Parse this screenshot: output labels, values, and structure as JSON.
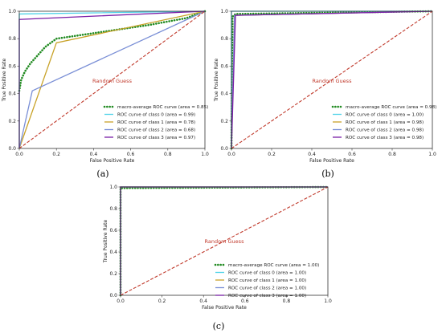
{
  "chart_data": [
    {
      "type": "line",
      "caption": "(a)",
      "xlabel": "False Positive Rate",
      "ylabel": "True Positive Rate",
      "xlim": [
        0,
        1
      ],
      "ylim": [
        0,
        1
      ],
      "xticks": [
        "0.0",
        "0.2",
        "0.4",
        "0.6",
        "0.8",
        "1.0"
      ],
      "yticks": [
        "0.0",
        "0.2",
        "0.4",
        "0.6",
        "0.8",
        "1.0"
      ],
      "grid": false,
      "legend_position": "lower-right",
      "diagonal_label": "Random Guess",
      "series": [
        {
          "name": "macro-average ROC curve (area = 0.85)",
          "color": "#228B22",
          "style": "dotted",
          "x": [
            0,
            0.01,
            0.03,
            0.06,
            0.1,
            0.14,
            0.2,
            0.3,
            0.5,
            0.7,
            0.9,
            1.0
          ],
          "y": [
            0.42,
            0.5,
            0.56,
            0.62,
            0.68,
            0.74,
            0.8,
            0.82,
            0.86,
            0.9,
            0.95,
            1.0
          ]
        },
        {
          "name": "ROC curve of class 0 (area = 0.99)",
          "color": "#4fd3e8",
          "style": "solid",
          "x": [
            0,
            0,
            1.0
          ],
          "y": [
            0,
            0.98,
            1.0
          ]
        },
        {
          "name": "ROC curve of class 1 (area = 0.78)",
          "color": "#c8a228",
          "style": "solid",
          "x": [
            0,
            0.2,
            1.0
          ],
          "y": [
            0,
            0.77,
            1.0
          ]
        },
        {
          "name": "ROC curve of class 2 (area = 0.68)",
          "color": "#7a8fd6",
          "style": "solid",
          "x": [
            0,
            0.07,
            1.0
          ],
          "y": [
            0,
            0.42,
            1.0
          ]
        },
        {
          "name": "ROC curve of class 3 (area = 0.97)",
          "color": "#7a1fa8",
          "style": "solid",
          "x": [
            0,
            0,
            1.0
          ],
          "y": [
            0,
            0.94,
            1.0
          ]
        }
      ]
    },
    {
      "type": "line",
      "caption": "(b)",
      "xlabel": "False Positive Rate",
      "ylabel": "True Positive Rate",
      "xlim": [
        0,
        1
      ],
      "ylim": [
        0,
        1
      ],
      "xticks": [
        "0.0",
        "0.2",
        "0.4",
        "0.6",
        "0.8",
        "1.0"
      ],
      "yticks": [
        "0.0",
        "0.2",
        "0.4",
        "0.6",
        "0.8",
        "1.0"
      ],
      "grid": false,
      "legend_position": "lower-right",
      "diagonal_label": "Random Guess",
      "series": [
        {
          "name": "macro-average ROC curve (area = 0.98)",
          "color": "#228B22",
          "style": "dotted",
          "x": [
            0,
            0.005,
            0.02,
            1.0
          ],
          "y": [
            0,
            0.96,
            0.98,
            1.0
          ]
        },
        {
          "name": "ROC curve of class 0 (area = 1.00)",
          "color": "#4fd3e8",
          "style": "solid",
          "x": [
            0,
            0,
            1.0
          ],
          "y": [
            0,
            1.0,
            1.0
          ]
        },
        {
          "name": "ROC curve of class 1 (area = 0.98)",
          "color": "#c8a228",
          "style": "solid",
          "x": [
            0,
            0.015,
            1.0
          ],
          "y": [
            0,
            0.97,
            1.0
          ]
        },
        {
          "name": "ROC curve of class 2 (area = 0.98)",
          "color": "#7a8fd6",
          "style": "solid",
          "x": [
            0,
            0.015,
            1.0
          ],
          "y": [
            0,
            0.97,
            1.0
          ]
        },
        {
          "name": "ROC curve of class 3 (area = 0.98)",
          "color": "#7a1fa8",
          "style": "solid",
          "x": [
            0,
            0.02,
            1.0
          ],
          "y": [
            0,
            0.97,
            1.0
          ]
        }
      ]
    },
    {
      "type": "line",
      "caption": "(c)",
      "xlabel": "False Positive Rate",
      "ylabel": "True Positive Rate",
      "xlim": [
        0,
        1
      ],
      "ylim": [
        0,
        1
      ],
      "xticks": [
        "0.0",
        "0.2",
        "0.4",
        "0.6",
        "0.8",
        "1.0"
      ],
      "yticks": [
        "0.0",
        "0.2",
        "0.4",
        "0.6",
        "0.8",
        "1.0"
      ],
      "grid": false,
      "legend_position": "lower-right",
      "diagonal_label": "Random Guess",
      "series": [
        {
          "name": "macro-average ROC curve (area = 1.00)",
          "color": "#228B22",
          "style": "dotted",
          "x": [
            0,
            0,
            1.0
          ],
          "y": [
            0,
            0.99,
            1.0
          ]
        },
        {
          "name": "ROC curve of class 0 (area = 1.00)",
          "color": "#4fd3e8",
          "style": "solid",
          "x": [
            0,
            0,
            1.0
          ],
          "y": [
            0,
            1.0,
            1.0
          ]
        },
        {
          "name": "ROC curve of class 1 (area = 1.00)",
          "color": "#c8a228",
          "style": "solid",
          "x": [
            0,
            0,
            1.0
          ],
          "y": [
            0,
            1.0,
            1.0
          ]
        },
        {
          "name": "ROC curve of class 2 (area = 1.00)",
          "color": "#7a8fd6",
          "style": "solid",
          "x": [
            0,
            0,
            1.0
          ],
          "y": [
            0,
            1.0,
            1.0
          ]
        },
        {
          "name": "ROC curve of class 3 (area = 1.00)",
          "color": "#7a1fa8",
          "style": "solid",
          "x": [
            0,
            0,
            1.0
          ],
          "y": [
            0,
            1.0,
            1.0
          ]
        }
      ]
    }
  ],
  "style": {
    "diagonal_color": "#c0392b",
    "guess_text_color": "#c0392b"
  }
}
